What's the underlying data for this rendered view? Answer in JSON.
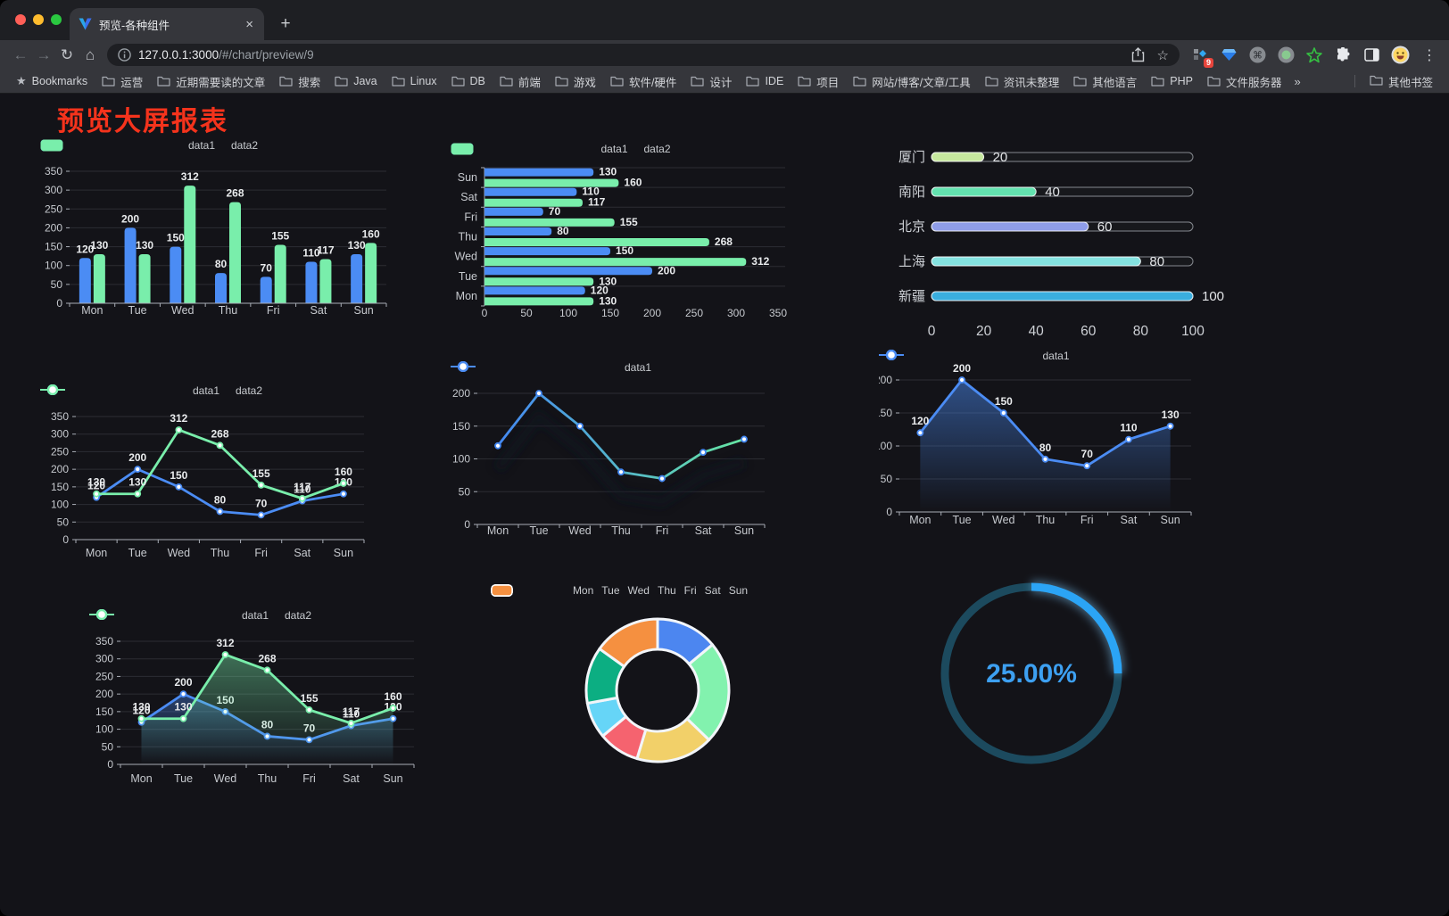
{
  "browser": {
    "tab_title": "预览-各种组件",
    "url_host": "127.0.0.1:3000",
    "url_path": "/#/chart/preview/9",
    "extension_badge": "9"
  },
  "icons": {
    "back": "←",
    "forward": "→",
    "reload": "↻",
    "home": "⌂",
    "close": "×",
    "new_tab": "+",
    "menu": "⋮",
    "overflow": "»",
    "command": "⌘",
    "star_outline": "☆",
    "bookmark_star": "★"
  },
  "bookmarks": {
    "root_label": "Bookmarks",
    "folders": [
      "运营",
      "近期需要读的文章",
      "搜索",
      "Java",
      "Linux",
      "DB",
      "前端",
      "游戏",
      "软件/硬件",
      "设计",
      "IDE",
      "项目",
      "网站/博客/文章/工具",
      "资讯未整理",
      "其他语言",
      "PHP",
      "文件服务器"
    ],
    "overflow_chevron": "»",
    "other_label": "其他书签"
  },
  "page": {
    "title": "预览大屏报表",
    "title_color": "#f5331c",
    "background": "#131318"
  },
  "chart_data": [
    {
      "id": "grouped-bar",
      "type": "bar",
      "categories": [
        "Mon",
        "Tue",
        "Wed",
        "Thu",
        "Fri",
        "Sat",
        "Sun"
      ],
      "series": [
        {
          "name": "data1",
          "color": "#4b8cf4",
          "values": [
            120,
            200,
            150,
            80,
            70,
            110,
            130
          ]
        },
        {
          "name": "data2",
          "color": "#79eeab",
          "values": [
            130,
            130,
            312,
            268,
            155,
            117,
            160
          ]
        }
      ],
      "ylim": [
        0,
        350
      ],
      "ystep": 50,
      "legend_position": "top",
      "grid": true,
      "value_labels": true
    },
    {
      "id": "grouped-hbar",
      "type": "hbar",
      "categories": [
        "Mon",
        "Tue",
        "Wed",
        "Thu",
        "Fri",
        "Sat",
        "Sun"
      ],
      "categories_top_to_bottom": [
        "Sun",
        "Sat",
        "Fri",
        "Thu",
        "Wed",
        "Tue",
        "Mon"
      ],
      "series": [
        {
          "name": "data1",
          "color": "#4b8cf4",
          "values": [
            120,
            200,
            150,
            80,
            70,
            110,
            130
          ]
        },
        {
          "name": "data2",
          "color": "#79eeab",
          "values": [
            130,
            130,
            312,
            268,
            155,
            117,
            160
          ]
        }
      ],
      "xlim": [
        0,
        350
      ],
      "xstep": 50,
      "legend_position": "top",
      "value_labels": true
    },
    {
      "id": "city-progress",
      "type": "bar",
      "subtype": "progress-pills",
      "items": [
        {
          "label": "厦门",
          "value": 20,
          "color": "#c6e89e"
        },
        {
          "label": "南阳",
          "value": 40,
          "color": "#63e2af"
        },
        {
          "label": "北京",
          "value": 60,
          "color": "#8f9de8"
        },
        {
          "label": "上海",
          "value": 80,
          "color": "#84e2e0"
        },
        {
          "label": "新疆",
          "value": 100,
          "color": "#3aaede"
        }
      ],
      "xlim": [
        0,
        100
      ],
      "xticks": [
        0,
        20,
        40,
        60,
        80,
        100
      ]
    },
    {
      "id": "line-two",
      "type": "line",
      "categories": [
        "Mon",
        "Tue",
        "Wed",
        "Thu",
        "Fri",
        "Sat",
        "Sun"
      ],
      "series": [
        {
          "name": "data1",
          "color": "#4b8cf4",
          "values": [
            120,
            200,
            150,
            80,
            70,
            110,
            130
          ]
        },
        {
          "name": "data2",
          "color": "#79eeab",
          "values": [
            130,
            130,
            312,
            268,
            155,
            117,
            160
          ]
        }
      ],
      "ylim": [
        0,
        350
      ],
      "ystep": 50,
      "legend_position": "top",
      "value_labels": true
    },
    {
      "id": "gradient-line",
      "type": "line",
      "categories": [
        "Mon",
        "Tue",
        "Wed",
        "Thu",
        "Fri",
        "Sat",
        "Sun"
      ],
      "series": [
        {
          "name": "data1",
          "color": "#4b8cf4",
          "gradient": [
            "#4488f2",
            "#66e6a2"
          ],
          "values": [
            120,
            200,
            150,
            80,
            70,
            110,
            130
          ]
        }
      ],
      "ylim": [
        0,
        200
      ],
      "ystep": 50,
      "legend_position": "top",
      "value_labels": false,
      "shadow": true
    },
    {
      "id": "area-one",
      "type": "area",
      "categories": [
        "Mon",
        "Tue",
        "Wed",
        "Thu",
        "Fri",
        "Sat",
        "Sun"
      ],
      "series": [
        {
          "name": "data1",
          "color": "#4b8cf4",
          "area": true,
          "area_opacity": 0.5,
          "values": [
            120,
            200,
            150,
            80,
            70,
            110,
            130
          ]
        }
      ],
      "ylim": [
        0,
        200
      ],
      "ystep": 50,
      "legend_position": "top",
      "value_labels": true
    },
    {
      "id": "line-two-area",
      "type": "area",
      "categories": [
        "Mon",
        "Tue",
        "Wed",
        "Thu",
        "Fri",
        "Sat",
        "Sun"
      ],
      "series": [
        {
          "name": "data1",
          "color": "#4b8cf4",
          "area": true,
          "area_opacity": 0.38,
          "values": [
            120,
            200,
            150,
            80,
            70,
            110,
            130
          ]
        },
        {
          "name": "data2",
          "color": "#79eeab",
          "area": true,
          "area_opacity": 0.42,
          "values": [
            130,
            130,
            312,
            268,
            155,
            117,
            160
          ]
        }
      ],
      "ylim": [
        0,
        350
      ],
      "ystep": 50,
      "legend_position": "top",
      "value_labels": true
    },
    {
      "id": "weekday-donut",
      "type": "pie",
      "categories": [
        "Mon",
        "Tue",
        "Wed",
        "Thu",
        "Fri",
        "Sat",
        "Sun"
      ],
      "values": [
        120,
        200,
        150,
        80,
        70,
        110,
        130
      ],
      "colors": [
        "#4c86f0",
        "#82f2ae",
        "#f2d069",
        "#f5636f",
        "#66d5f7",
        "#0cae82",
        "#f59040"
      ],
      "inner_radius_ratio": 0.57,
      "legend_position": "top",
      "border_color": "#f2f5f9"
    },
    {
      "id": "progress-gauge",
      "type": "gauge",
      "value": 25,
      "label": "25.00%",
      "color": "#2ba4f5",
      "track_color": "#1c4a5e",
      "text_color": "#3da0f1"
    }
  ]
}
